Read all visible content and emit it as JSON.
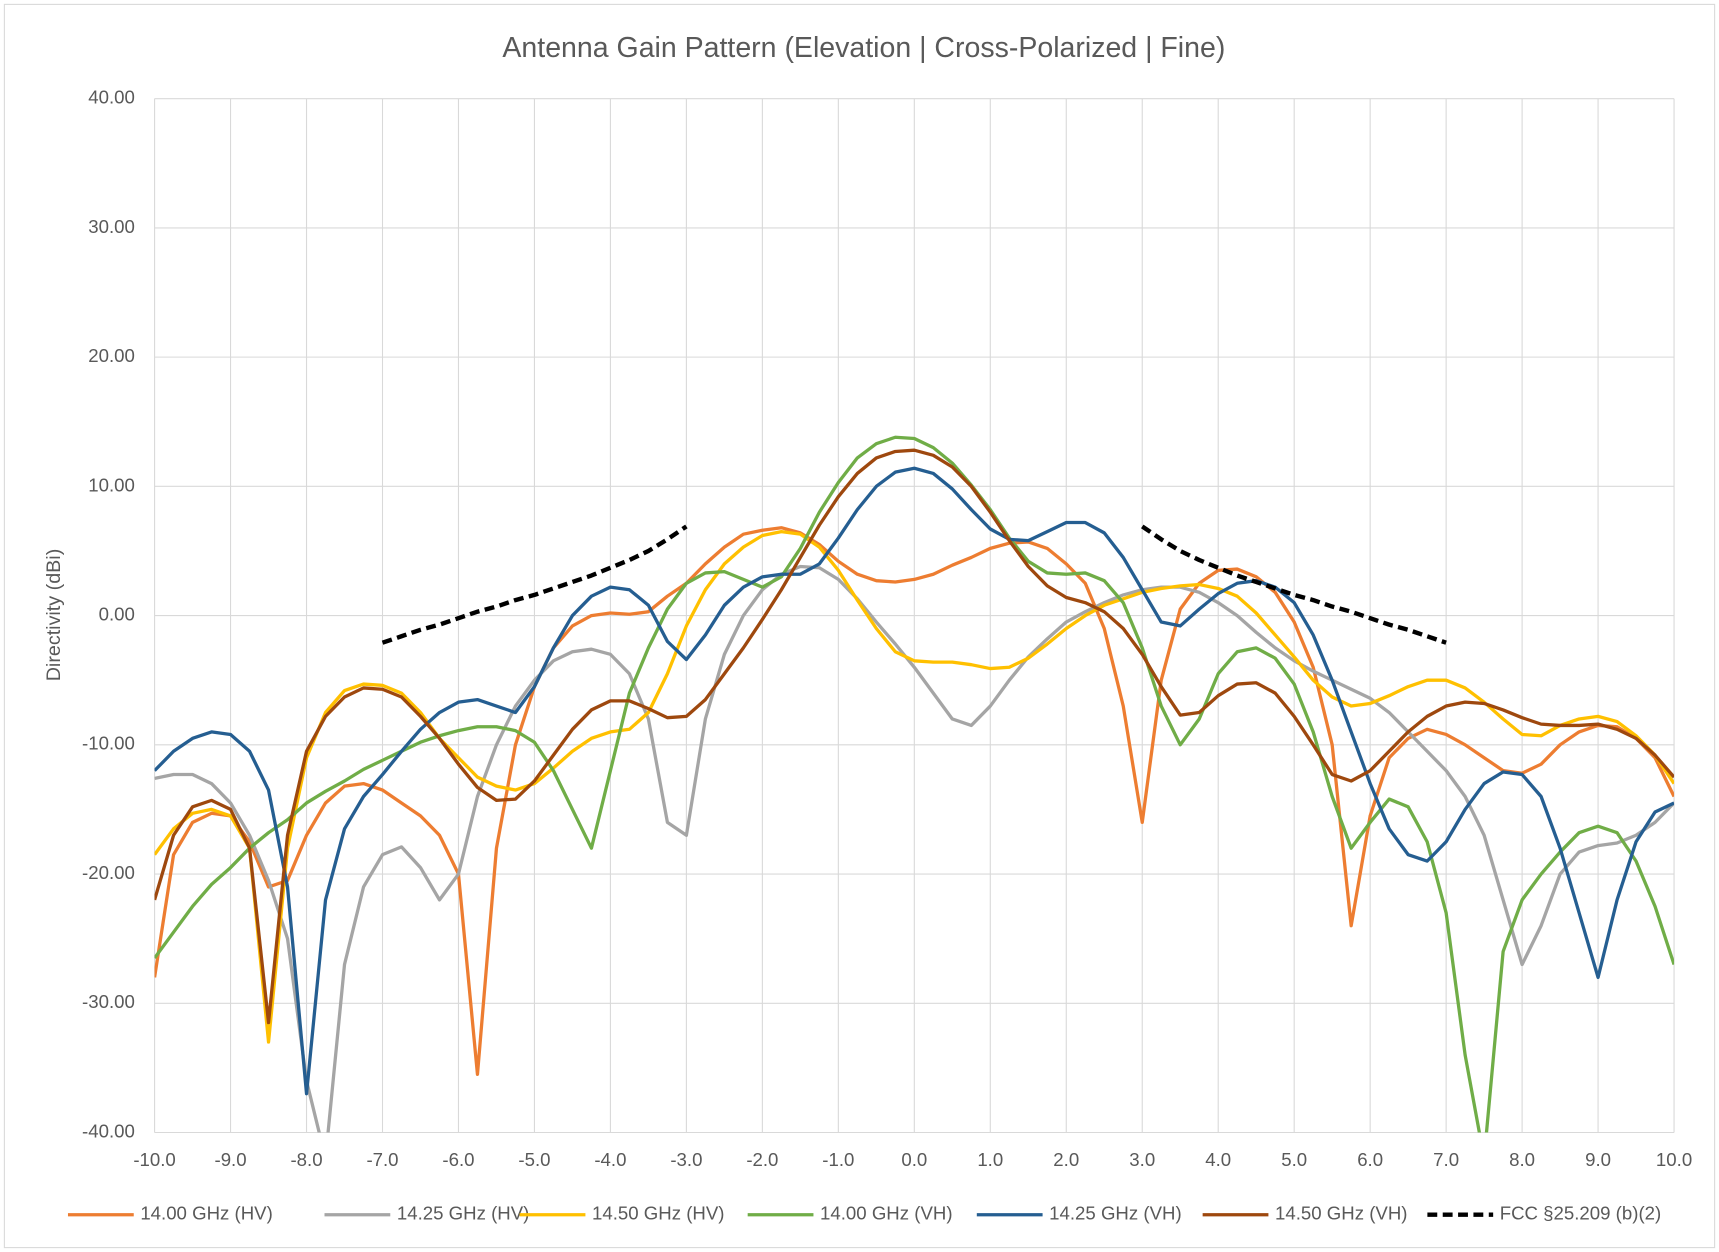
{
  "chart_data": {
    "type": "line",
    "title": "Antenna Gain Pattern (Elevation | Cross-Polarized  | Fine)",
    "y_label": "Directivity (dBi)",
    "x": [
      -10,
      -9.75,
      -9.5,
      -9.25,
      -9,
      -8.75,
      -8.5,
      -8.25,
      -8,
      -7.75,
      -7.5,
      -7.25,
      -7,
      -6.75,
      -6.5,
      -6.25,
      -6,
      -5.75,
      -5.5,
      -5.25,
      -5,
      -4.75,
      -4.5,
      -4.25,
      -4,
      -3.75,
      -3.5,
      -3.25,
      -3,
      -2.75,
      -2.5,
      -2.25,
      -2,
      -1.75,
      -1.5,
      -1.25,
      -1,
      -0.75,
      -0.5,
      -0.25,
      0,
      0.25,
      0.5,
      0.75,
      1,
      1.25,
      1.5,
      1.75,
      2,
      2.25,
      2.5,
      2.75,
      3,
      3.25,
      3.5,
      3.75,
      4,
      4.25,
      4.5,
      4.75,
      5,
      5.25,
      5.5,
      5.75,
      6,
      6.25,
      6.5,
      6.75,
      7,
      7.25,
      7.5,
      7.75,
      8,
      8.25,
      8.5,
      8.75,
      9,
      9.25,
      9.5,
      9.75,
      10
    ],
    "series": [
      {
        "name": "14.00 GHz (HV)",
        "color": "#ed7d31",
        "values": [
          -28,
          -18.5,
          -16,
          -15.3,
          -15.5,
          -17.5,
          -21,
          -20.5,
          -17,
          -14.5,
          -13.2,
          -13,
          -13.5,
          -14.5,
          -15.5,
          -17,
          -20,
          -35.5,
          -18,
          -10,
          -5.5,
          -2.5,
          -0.8,
          0,
          0.2,
          0.1,
          0.3,
          1.5,
          2.5,
          4,
          5.3,
          6.3,
          6.6,
          6.8,
          6.4,
          5.5,
          4.2,
          3.2,
          2.7,
          2.6,
          2.8,
          3.2,
          3.9,
          4.5,
          5.2,
          5.6,
          5.7,
          5.2,
          4,
          2.5,
          -1,
          -7,
          -16,
          -5,
          0.5,
          2.5,
          3.5,
          3.6,
          3,
          1.8,
          -0.5,
          -4,
          -10,
          -24,
          -15.5,
          -11,
          -9.5,
          -8.8,
          -9.2,
          -10,
          -11,
          -12,
          -12.2,
          -11.5,
          -10,
          -9,
          -8.5,
          -8.6,
          -9.5,
          -11,
          -14
        ]
      },
      {
        "name": "14.25 GHz (HV)",
        "color": "#a5a5a5",
        "values": [
          -12.6,
          -12.3,
          -12.3,
          -13,
          -14.5,
          -17,
          -20.5,
          -25,
          -36,
          -42,
          -27,
          -21,
          -18.5,
          -17.9,
          -19.5,
          -22,
          -20,
          -14,
          -10,
          -7,
          -5,
          -3.5,
          -2.8,
          -2.6,
          -3,
          -4.5,
          -8,
          -16,
          -17,
          -8,
          -3,
          0,
          2,
          3.2,
          3.8,
          3.7,
          2.8,
          1.3,
          -0.5,
          -2.2,
          -4,
          -6,
          -8,
          -8.5,
          -7,
          -5,
          -3.2,
          -1.8,
          -0.5,
          0.3,
          1,
          1.6,
          2,
          2.2,
          2.2,
          1.8,
          1,
          0,
          -1.3,
          -2.5,
          -3.5,
          -4.3,
          -5,
          -5.7,
          -6.4,
          -7.5,
          -9,
          -10.5,
          -12,
          -14,
          -17,
          -22,
          -27,
          -24,
          -20,
          -18.3,
          -17.8,
          -17.6,
          -17,
          -16,
          -14.5
        ]
      },
      {
        "name": "14.50 GHz (HV)",
        "color": "#ffc000",
        "values": [
          -18.5,
          -16.5,
          -15.3,
          -15,
          -15.5,
          -18,
          -33,
          -18,
          -11,
          -7.5,
          -5.8,
          -5.3,
          -5.4,
          -6,
          -7.5,
          -9.5,
          -11,
          -12.5,
          -13.2,
          -13.5,
          -13,
          -11.8,
          -10.5,
          -9.5,
          -9,
          -8.8,
          -7.5,
          -4.5,
          -0.8,
          2,
          4,
          5.3,
          6.2,
          6.5,
          6.3,
          5.3,
          3.5,
          1.2,
          -1,
          -2.8,
          -3.5,
          -3.6,
          -3.6,
          -3.8,
          -4.1,
          -4,
          -3.3,
          -2.2,
          -1,
          0,
          0.8,
          1.3,
          1.8,
          2.1,
          2.3,
          2.4,
          2.1,
          1.5,
          0.2,
          -1.5,
          -3.2,
          -5,
          -6.3,
          -7,
          -6.8,
          -6.2,
          -5.5,
          -5,
          -5,
          -5.6,
          -6.7,
          -8,
          -9.2,
          -9.3,
          -8.5,
          -8,
          -7.8,
          -8.2,
          -9.3,
          -10.8,
          -13
        ]
      },
      {
        "name": "14.00 GHz (VH)",
        "color": "#70ad47",
        "values": [
          -26.5,
          -24.5,
          -22.5,
          -20.8,
          -19.5,
          -18,
          -16.8,
          -15.8,
          -14.5,
          -13.6,
          -12.8,
          -11.9,
          -11.2,
          -10.5,
          -9.8,
          -9.3,
          -8.9,
          -8.6,
          -8.6,
          -8.9,
          -9.8,
          -12,
          -15,
          -18,
          -12,
          -6,
          -2.5,
          0.5,
          2.5,
          3.3,
          3.4,
          2.8,
          2.2,
          3,
          5.2,
          8,
          10.3,
          12.2,
          13.3,
          13.8,
          13.7,
          13,
          11.8,
          10.1,
          8.2,
          6,
          4.2,
          3.3,
          3.2,
          3.3,
          2.7,
          1,
          -2.5,
          -7,
          -10,
          -8,
          -4.5,
          -2.8,
          -2.5,
          -3.3,
          -5.3,
          -9,
          -14,
          -18,
          -16,
          -14.2,
          -14.8,
          -17.5,
          -23,
          -34,
          -42,
          -26,
          -22,
          -20,
          -18.3,
          -16.8,
          -16.3,
          -16.8,
          -19,
          -22.5,
          -27
        ]
      },
      {
        "name": "14.25 GHz (VH)",
        "color": "#255e91",
        "values": [
          -12,
          -10.5,
          -9.5,
          -9,
          -9.2,
          -10.5,
          -13.5,
          -21,
          -37,
          -22,
          -16.5,
          -14,
          -12.3,
          -10.5,
          -8.8,
          -7.5,
          -6.7,
          -6.5,
          -7,
          -7.5,
          -5.5,
          -2.5,
          0,
          1.5,
          2.2,
          2,
          0.8,
          -2,
          -3.4,
          -1.5,
          0.8,
          2.2,
          3,
          3.2,
          3.2,
          4,
          6,
          8.2,
          10,
          11.1,
          11.4,
          11,
          9.8,
          8.2,
          6.7,
          5.9,
          5.8,
          6.5,
          7.2,
          7.2,
          6.4,
          4.5,
          2,
          -0.5,
          -0.8,
          0.5,
          1.7,
          2.5,
          2.7,
          2.2,
          1,
          -1.5,
          -5,
          -9,
          -13,
          -16.5,
          -18.5,
          -19,
          -17.5,
          -15,
          -13,
          -12.1,
          -12.3,
          -14,
          -18,
          -23,
          -28,
          -22,
          -17.5,
          -15.2,
          -14.5
        ]
      },
      {
        "name": "14.50 GHz (VH)",
        "color": "#9e480e",
        "values": [
          -22,
          -17,
          -14.8,
          -14.3,
          -15,
          -18,
          -31.5,
          -17,
          -10.5,
          -7.8,
          -6.3,
          -5.6,
          -5.7,
          -6.3,
          -7.8,
          -9.5,
          -11.5,
          -13.3,
          -14.3,
          -14.2,
          -12.8,
          -10.8,
          -8.8,
          -7.3,
          -6.6,
          -6.6,
          -7.2,
          -7.9,
          -7.8,
          -6.5,
          -4.5,
          -2.5,
          -0.3,
          2,
          4.5,
          7,
          9.2,
          11,
          12.2,
          12.7,
          12.8,
          12.4,
          11.5,
          10,
          8,
          5.8,
          3.8,
          2.3,
          1.4,
          1,
          0.3,
          -1,
          -3,
          -5.5,
          -7.7,
          -7.5,
          -6.2,
          -5.3,
          -5.2,
          -6,
          -7.8,
          -10,
          -12.3,
          -12.8,
          -12,
          -10.5,
          -9,
          -7.8,
          -7,
          -6.7,
          -6.8,
          -7.3,
          -7.9,
          -8.4,
          -8.5,
          -8.5,
          -8.4,
          -8.8,
          -9.5,
          -10.8,
          -12.5
        ]
      },
      {
        "name": "FCC §25.209 (b)(2)",
        "color": "#000000",
        "dash": true,
        "values": [
          null,
          null,
          null,
          null,
          null,
          null,
          null,
          null,
          null,
          null,
          null,
          null,
          -2.1,
          -1.6,
          -1.1,
          -0.7,
          -0.2,
          0.3,
          0.7,
          1.2,
          1.6,
          2.1,
          2.6,
          3.1,
          3.7,
          4.3,
          5,
          5.9,
          6.9,
          null,
          null,
          null,
          null,
          null,
          null,
          null,
          null,
          null,
          null,
          null,
          null,
          null,
          null,
          null,
          null,
          null,
          null,
          null,
          null,
          null,
          null,
          null,
          6.9,
          5.9,
          5,
          4.3,
          3.7,
          3.1,
          2.6,
          2.1,
          1.6,
          1.2,
          0.7,
          0.3,
          -0.2,
          -0.7,
          -1.1,
          -1.6,
          -2.1,
          null,
          null,
          null,
          null,
          null,
          null,
          null,
          null,
          null,
          null,
          null,
          null
        ]
      }
    ],
    "xlim": [
      -10,
      10
    ],
    "xticks": [
      {
        "value": -10,
        "label": "-10.0"
      },
      {
        "value": -9,
        "label": "-9.0"
      },
      {
        "value": -8,
        "label": "-8.0"
      },
      {
        "value": -7,
        "label": "-7.0"
      },
      {
        "value": -6,
        "label": "-6.0"
      },
      {
        "value": -5,
        "label": "-5.0"
      },
      {
        "value": -4,
        "label": "-4.0"
      },
      {
        "value": -3,
        "label": "-3.0"
      },
      {
        "value": -2,
        "label": "-2.0"
      },
      {
        "value": -1,
        "label": "-1.0"
      },
      {
        "value": 0,
        "label": "0.0"
      },
      {
        "value": 1,
        "label": "1.0"
      },
      {
        "value": 2,
        "label": "2.0"
      },
      {
        "value": 3,
        "label": "3.0"
      },
      {
        "value": 4,
        "label": "4.0"
      },
      {
        "value": 5,
        "label": "5.0"
      },
      {
        "value": 6,
        "label": "6.0"
      },
      {
        "value": 7,
        "label": "7.0"
      },
      {
        "value": 8,
        "label": "8.0"
      },
      {
        "value": 9,
        "label": "9.0"
      },
      {
        "value": 10,
        "label": "10.0"
      }
    ],
    "ylim": [
      -40,
      40
    ],
    "yticks": [
      {
        "value": -40,
        "label": "-40.00"
      },
      {
        "value": -30,
        "label": "-30.00"
      },
      {
        "value": -20,
        "label": "-20.00"
      },
      {
        "value": -10,
        "label": "-10.00"
      },
      {
        "value": 0,
        "label": "0.00"
      },
      {
        "value": 10,
        "label": "10.00"
      },
      {
        "value": 20,
        "label": "20.00"
      },
      {
        "value": 30,
        "label": "30.00"
      },
      {
        "value": 40,
        "label": "40.00"
      }
    ],
    "grid": true,
    "legend": "bottom"
  }
}
